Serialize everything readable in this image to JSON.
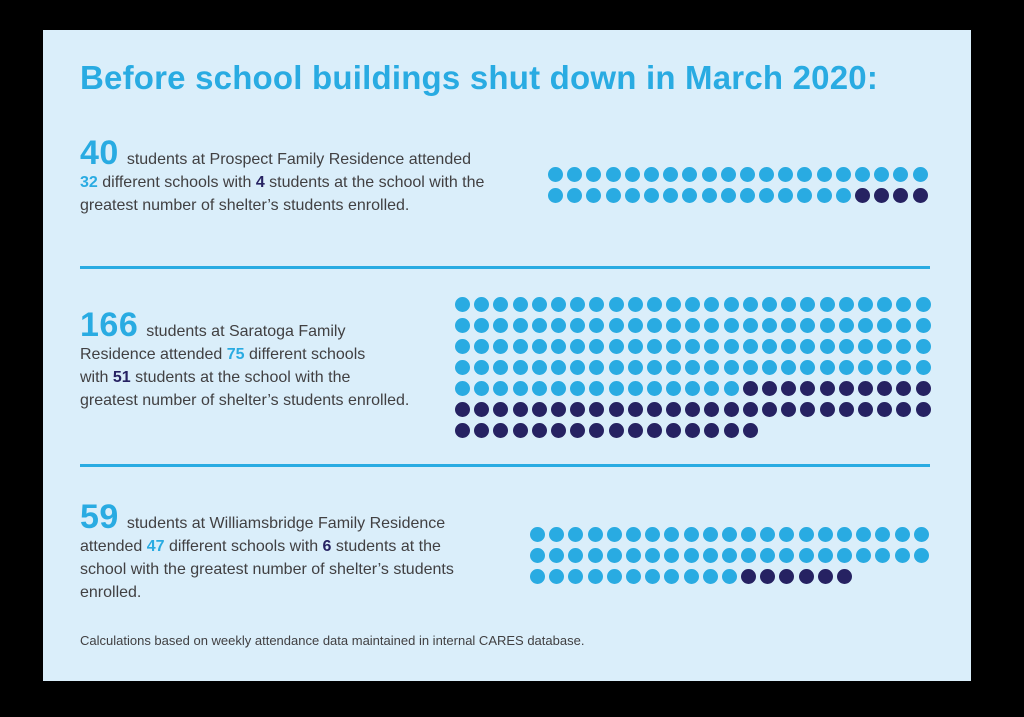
{
  "colors": {
    "background": "#000000",
    "card": "#daeefa",
    "cyan": "#29abe2",
    "navy": "#262262",
    "text": "#414042"
  },
  "header": {
    "title": "Before school buildings shut down in March 2020:"
  },
  "sections": [
    {
      "segments": [
        {
          "style": "big",
          "text": "40"
        },
        {
          "style": "body",
          "text": "students at Prospect Family Residence attended"
        },
        {
          "style": "break"
        },
        {
          "style": "cyan",
          "text": "32"
        },
        {
          "style": "body",
          "text": " different schools with "
        },
        {
          "style": "navy",
          "text": "4"
        },
        {
          "style": "body",
          "text": " students at the school with the"
        },
        {
          "style": "break"
        },
        {
          "style": "body",
          "text": "greatest number of shelter’s students enrolled."
        }
      ]
    },
    {
      "segments": [
        {
          "style": "big",
          "text": "166"
        },
        {
          "style": "body",
          "text": "students at Saratoga Family"
        },
        {
          "style": "break"
        },
        {
          "style": "body",
          "text": "Residence attended "
        },
        {
          "style": "cyan",
          "text": "75"
        },
        {
          "style": "body",
          "text": " different schools"
        },
        {
          "style": "break"
        },
        {
          "style": "body",
          "text": "with "
        },
        {
          "style": "navy",
          "text": "51"
        },
        {
          "style": "body",
          "text": " students at the school with the"
        },
        {
          "style": "break"
        },
        {
          "style": "body",
          "text": "greatest number of shelter’s students enrolled."
        }
      ]
    },
    {
      "segments": [
        {
          "style": "big",
          "text": "59"
        },
        {
          "style": "body",
          "text": "students at Williamsbridge Family Residence"
        },
        {
          "style": "break"
        },
        {
          "style": "body",
          "text": "attended "
        },
        {
          "style": "cyan",
          "text": "47"
        },
        {
          "style": "body",
          "text": " different schools with "
        },
        {
          "style": "navy",
          "text": "6"
        },
        {
          "style": "body",
          "text": " students at the"
        },
        {
          "style": "break"
        },
        {
          "style": "body",
          "text": "school with the greatest number of shelter’s students"
        },
        {
          "style": "break"
        },
        {
          "style": "body",
          "text": "enrolled."
        }
      ]
    }
  ],
  "footnote": "Calculations based on weekly attendance data maintained in internal CARES database.",
  "chart_data": [
    {
      "type": "waffle",
      "title": "Prospect Family Residence",
      "total_students": 40,
      "different_schools": 32,
      "students_at_largest_school": 4,
      "dot_value": 1,
      "colors": {
        "students": "#29abe2",
        "largest_school_students": "#262262"
      },
      "rows": [
        {
          "cyan": 20,
          "navy": 0
        },
        {
          "cyan": 16,
          "navy": 4
        }
      ]
    },
    {
      "type": "waffle",
      "title": "Saratoga Family Residence",
      "total_students": 166,
      "different_schools": 75,
      "students_at_largest_school": 51,
      "dot_value": 1,
      "colors": {
        "students": "#29abe2",
        "largest_school_students": "#262262"
      },
      "rows": [
        {
          "cyan": 25,
          "navy": 0
        },
        {
          "cyan": 25,
          "navy": 0
        },
        {
          "cyan": 25,
          "navy": 0
        },
        {
          "cyan": 25,
          "navy": 0
        },
        {
          "cyan": 15,
          "navy": 10
        },
        {
          "cyan": 0,
          "navy": 25
        },
        {
          "cyan": 0,
          "navy": 16
        }
      ]
    },
    {
      "type": "waffle",
      "title": "Williamsbridge Family Residence",
      "total_students": 59,
      "different_schools": 47,
      "students_at_largest_school": 6,
      "dot_value": 1,
      "colors": {
        "students": "#29abe2",
        "largest_school_students": "#262262"
      },
      "rows": [
        {
          "cyan": 21,
          "navy": 0
        },
        {
          "cyan": 21,
          "navy": 0
        },
        {
          "cyan": 11,
          "navy": 6
        }
      ]
    }
  ]
}
